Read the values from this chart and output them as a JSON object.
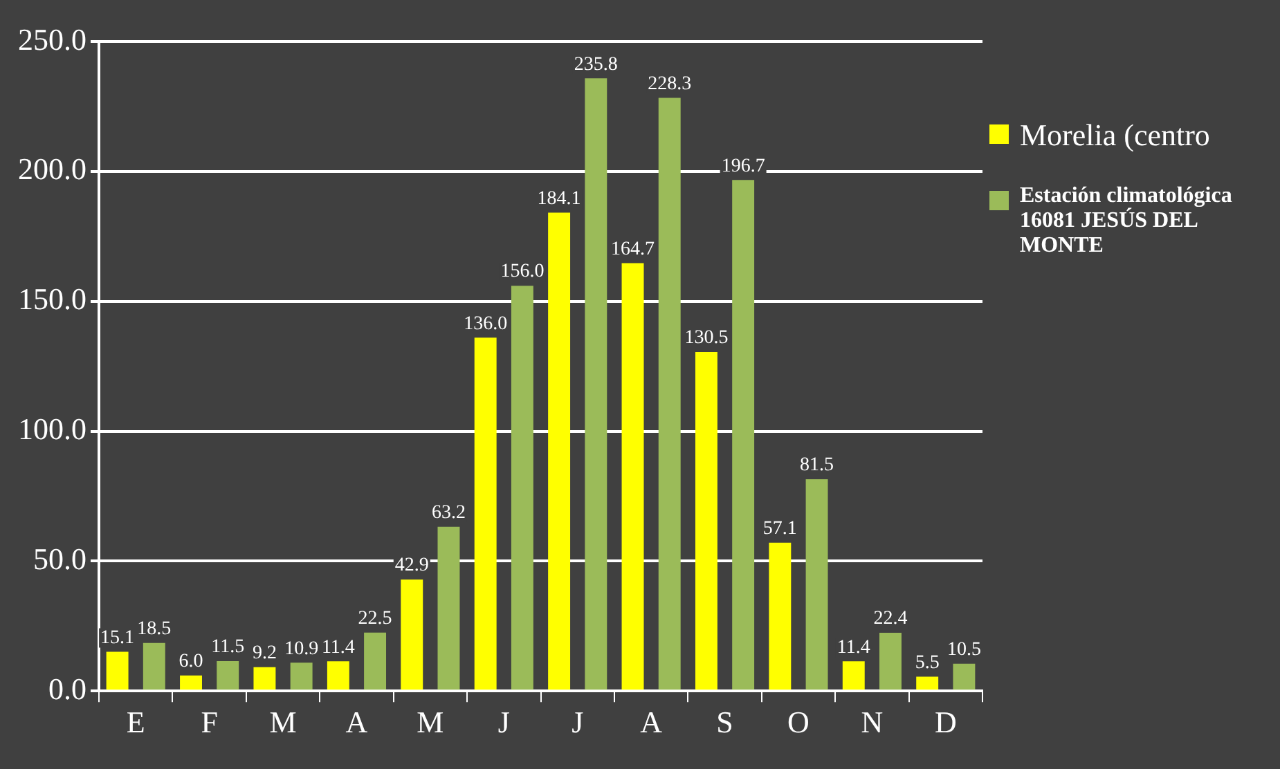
{
  "chart_data": {
    "type": "bar",
    "categories": [
      "E",
      "F",
      "M",
      "A",
      "M",
      "J",
      "J",
      "A",
      "S",
      "O",
      "N",
      "D"
    ],
    "series": [
      {
        "name": "Morelia (centro",
        "color": "#ffff00",
        "values": [
          15.1,
          6.0,
          9.2,
          11.4,
          42.9,
          136.0,
          184.1,
          164.7,
          130.5,
          57.1,
          11.4,
          5.5
        ],
        "value_labels": [
          "15.1",
          "6.0",
          "9.2",
          "11.4",
          "42.9",
          "136.0",
          "184.1",
          "164.7",
          "130.5",
          "57.1",
          "11.4",
          "5.5"
        ]
      },
      {
        "name": "Estación climatológica 16081 JESÚS DEL MONTE",
        "color": "#9bbb59",
        "values": [
          18.5,
          11.5,
          10.9,
          22.5,
          63.2,
          156.0,
          235.8,
          228.3,
          196.7,
          81.5,
          22.4,
          10.5
        ],
        "value_labels": [
          "18.5",
          "11.5",
          "10.9",
          "22.5",
          "63.2",
          "156.0",
          "235.8",
          "228.3",
          "196.7",
          "81.5",
          "22.4",
          "10.5"
        ]
      }
    ],
    "ylim": [
      0,
      250
    ],
    "yticks": [
      {
        "value": 0,
        "label": "0.0"
      },
      {
        "value": 50,
        "label": "50.0"
      },
      {
        "value": 100,
        "label": "100.0"
      },
      {
        "value": 150,
        "label": "150.0"
      },
      {
        "value": 200,
        "label": "200.0"
      },
      {
        "value": 250,
        "label": "250.0"
      }
    ],
    "grid": "y",
    "legend": "right"
  }
}
